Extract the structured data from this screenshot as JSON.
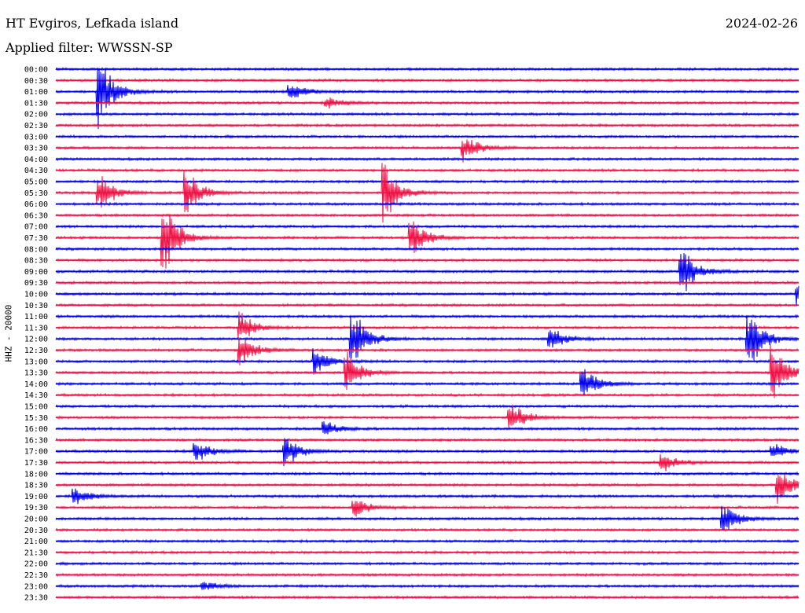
{
  "header": {
    "station": "HT Evgiros, Lefkada island",
    "date": "2024-02-26",
    "filter": "Applied filter: WWSSN-SP"
  },
  "colors": {
    "trace_a": "#0000ee",
    "trace_b": "#ee1144"
  },
  "chart_data": {
    "type": "line",
    "ylabel": "HHZ - 20000",
    "rows": [
      "00:00",
      "00:30",
      "01:00",
      "01:30",
      "02:00",
      "02:30",
      "03:00",
      "03:30",
      "04:00",
      "04:30",
      "05:00",
      "05:30",
      "06:00",
      "06:30",
      "07:00",
      "07:30",
      "08:00",
      "08:30",
      "09:00",
      "09:30",
      "10:00",
      "10:30",
      "11:00",
      "11:30",
      "12:00",
      "12:30",
      "13:00",
      "13:30",
      "14:00",
      "14:30",
      "15:00",
      "15:30",
      "16:00",
      "16:30",
      "17:00",
      "17:30",
      "18:00",
      "18:30",
      "19:00",
      "19:30",
      "20:00",
      "20:30",
      "21:00",
      "21:30",
      "22:00",
      "22:30",
      "23:00",
      "23:30"
    ],
    "x_span_minutes": [
      0,
      30
    ],
    "events": [
      {
        "row": "01:00",
        "minute": 1.8,
        "amp": 2.2
      },
      {
        "row": "01:00",
        "minute": 9.5,
        "amp": 0.6
      },
      {
        "row": "01:30",
        "minute": 11.0,
        "amp": 0.4
      },
      {
        "row": "03:30",
        "minute": 16.5,
        "amp": 0.9
      },
      {
        "row": "05:30",
        "minute": 1.8,
        "amp": 1.2
      },
      {
        "row": "05:30",
        "minute": 5.3,
        "amp": 1.5
      },
      {
        "row": "05:30",
        "minute": 13.3,
        "amp": 2.0
      },
      {
        "row": "07:30",
        "minute": 4.4,
        "amp": 2.4
      },
      {
        "row": "07:30",
        "minute": 14.4,
        "amp": 1.3
      },
      {
        "row": "09:00",
        "minute": 25.3,
        "amp": 1.6
      },
      {
        "row": "10:00",
        "minute": 30.0,
        "amp": 0.8
      },
      {
        "row": "11:30",
        "minute": 7.5,
        "amp": 1.0
      },
      {
        "row": "12:00",
        "minute": 12.0,
        "amp": 2.1
      },
      {
        "row": "12:00",
        "minute": 20.0,
        "amp": 0.8
      },
      {
        "row": "12:00",
        "minute": 28.0,
        "amp": 2.0
      },
      {
        "row": "12:30",
        "minute": 7.5,
        "amp": 1.0
      },
      {
        "row": "13:00",
        "minute": 10.5,
        "amp": 0.9
      },
      {
        "row": "13:30",
        "minute": 11.8,
        "amp": 1.2
      },
      {
        "row": "13:30",
        "minute": 29.0,
        "amp": 1.8
      },
      {
        "row": "14:00",
        "minute": 21.3,
        "amp": 1.3
      },
      {
        "row": "15:30",
        "minute": 18.4,
        "amp": 1.0
      },
      {
        "row": "16:00",
        "minute": 10.9,
        "amp": 0.5
      },
      {
        "row": "17:00",
        "minute": 5.7,
        "amp": 0.7
      },
      {
        "row": "17:00",
        "minute": 9.3,
        "amp": 1.0
      },
      {
        "row": "17:00",
        "minute": 29.0,
        "amp": 0.5
      },
      {
        "row": "17:30",
        "minute": 24.5,
        "amp": 0.7
      },
      {
        "row": "18:30",
        "minute": 29.2,
        "amp": 1.3
      },
      {
        "row": "19:00",
        "minute": 0.8,
        "amp": 0.6
      },
      {
        "row": "19:30",
        "minute": 12.1,
        "amp": 0.7
      },
      {
        "row": "20:00",
        "minute": 27.0,
        "amp": 1.0
      },
      {
        "row": "23:00",
        "minute": 6.0,
        "amp": 0.3
      }
    ]
  }
}
